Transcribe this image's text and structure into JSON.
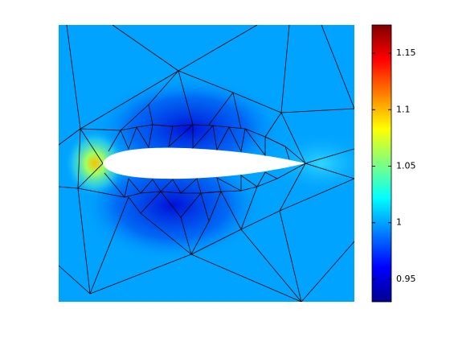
{
  "chart_data": {
    "type": "mesh",
    "clim": [
      0.93,
      1.175
    ],
    "cticks": [
      0.95,
      1,
      1.05,
      1.1,
      1.15
    ]
  }
}
